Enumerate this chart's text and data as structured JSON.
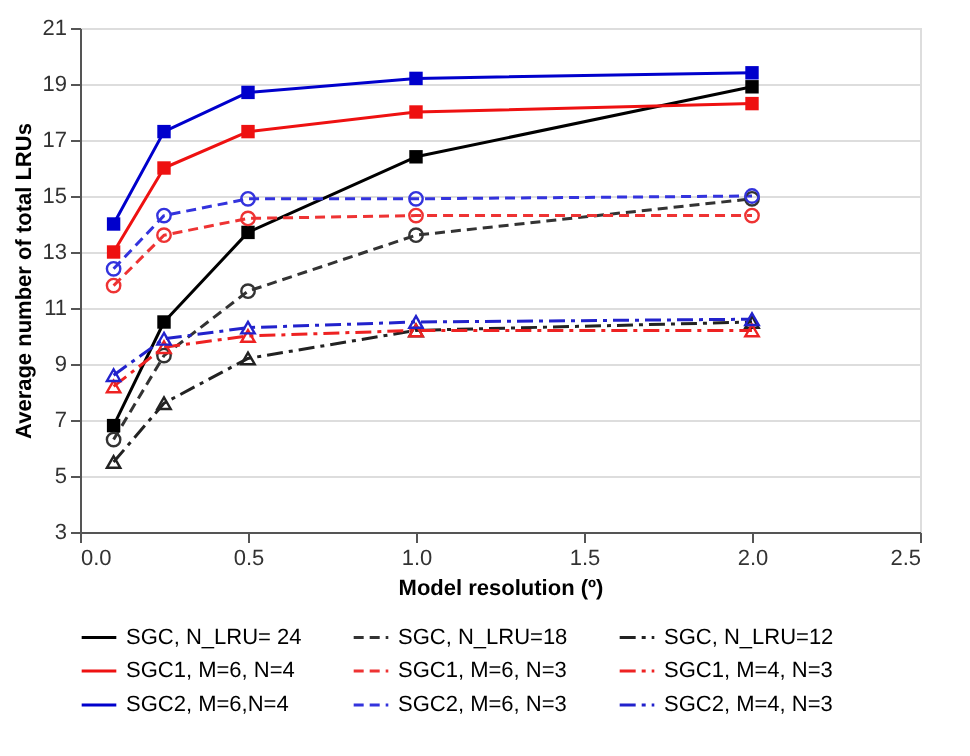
{
  "chart_data": {
    "type": "line",
    "xlabel": "Model resolution (º)",
    "ylabel": "Average number of total LRUs",
    "x": [
      0.1,
      0.25,
      0.5,
      1.0,
      2.0
    ],
    "xlim": [
      0,
      2.5
    ],
    "xticks": [
      {
        "value": 0,
        "label": "0.0"
      },
      0.5,
      {
        "value": 1,
        "label": "1.0"
      },
      1.5,
      {
        "value": 2,
        "label": "2.0"
      },
      2.5
    ],
    "ylim": [
      3,
      21
    ],
    "yticks": [
      3,
      5,
      7,
      9,
      11,
      13,
      15,
      17,
      19,
      21
    ],
    "grid": "y",
    "legend": "bottom",
    "series": [
      {
        "name": "SGC, N_LRU= 24",
        "color": "#000000",
        "marker": "square",
        "line_style": "solid",
        "values": [
          6.8,
          10.5,
          13.7,
          16.4,
          18.9
        ]
      },
      {
        "name": "SGC, N_LRU=18",
        "color": "#333333",
        "marker": "circle",
        "line_style": "dashed",
        "values": [
          6.3,
          9.3,
          11.6,
          13.6,
          14.9
        ]
      },
      {
        "name": "SGC, N_LRU=12",
        "color": "#222222",
        "marker": "triangle",
        "line_style": "dashdot",
        "values": [
          5.5,
          7.6,
          9.2,
          10.2,
          10.5
        ]
      },
      {
        "name": "SGC1, M=6, N=4",
        "color": "#ee1111",
        "marker": "square",
        "line_style": "solid",
        "values": [
          13.0,
          16.0,
          17.3,
          18.0,
          18.3
        ]
      },
      {
        "name": "SGC1, M=6, N=3",
        "color": "#ee3333",
        "marker": "circle",
        "line_style": "dashed",
        "values": [
          11.8,
          13.6,
          14.2,
          14.3,
          14.3
        ]
      },
      {
        "name": "SGC1, M=4, N=3",
        "color": "#ee2222",
        "marker": "triangle",
        "line_style": "dashdot",
        "values": [
          8.2,
          9.6,
          10.0,
          10.2,
          10.2
        ]
      },
      {
        "name": "SGC2, M=6,N=4",
        "color": "#0000cc",
        "marker": "square",
        "line_style": "solid",
        "values": [
          14.0,
          17.3,
          18.7,
          19.2,
          19.4
        ]
      },
      {
        "name": "SGC2, M=6, N=3",
        "color": "#3333dd",
        "marker": "circle",
        "line_style": "dashed",
        "values": [
          12.4,
          14.3,
          14.9,
          14.9,
          15.0
        ]
      },
      {
        "name": "SGC2, M=4, N=3",
        "color": "#2222cc",
        "marker": "triangle",
        "line_style": "dashdot",
        "values": [
          8.6,
          9.9,
          10.3,
          10.5,
          10.6
        ]
      }
    ]
  }
}
